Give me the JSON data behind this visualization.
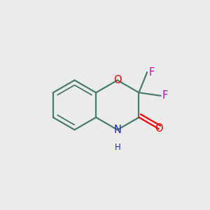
{
  "background_color": "#EBEBEB",
  "bond_color": "#4a7c6e",
  "bond_width": 1.6,
  "atom_colors": {
    "O": "#ff0000",
    "N": "#2222cc",
    "F": "#cc00bb",
    "C": "#4a7c6e"
  },
  "font_size_atom": 10.5,
  "font_size_H": 8.5,
  "scale": 0.118
}
